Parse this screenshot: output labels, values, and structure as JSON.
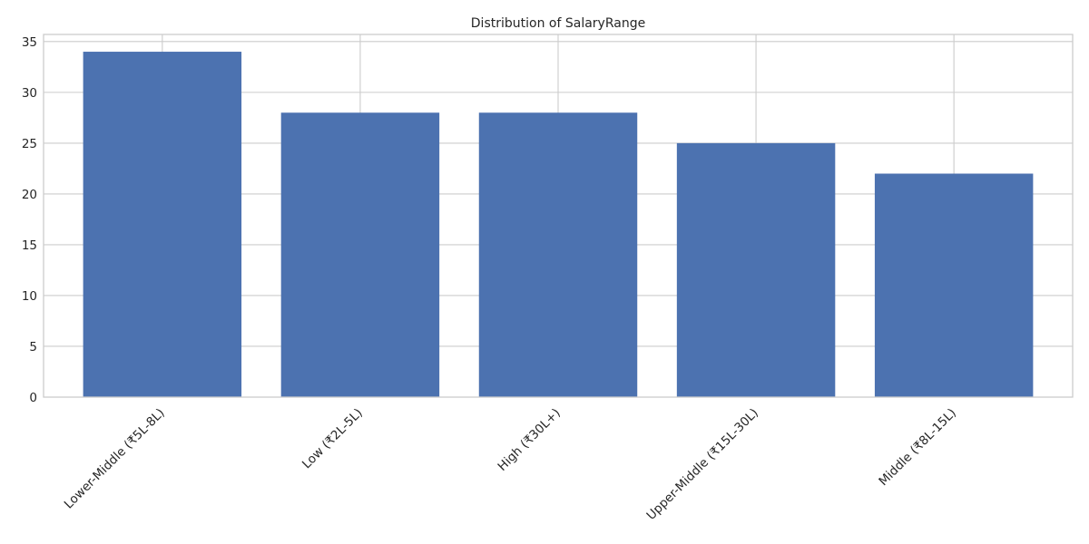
{
  "chart_data": {
    "type": "bar",
    "title": "Distribution of SalaryRange",
    "xlabel": "",
    "ylabel": "",
    "categories": [
      "Lower-Middle (₹5L-8L)",
      "Low (₹2L-5L)",
      "High (₹30L+)",
      "Upper-Middle (₹15L-30L)",
      "Middle (₹8L-15L)"
    ],
    "values": [
      34,
      28,
      28,
      25,
      22
    ],
    "ylim": [
      0,
      35.7
    ],
    "yticks": [
      0,
      5,
      10,
      15,
      20,
      25,
      30,
      35
    ],
    "grid": true,
    "legend": "none",
    "bar_color": "#4c72b0",
    "grid_color": "#cccccc",
    "spine_color": "#cccccc"
  }
}
